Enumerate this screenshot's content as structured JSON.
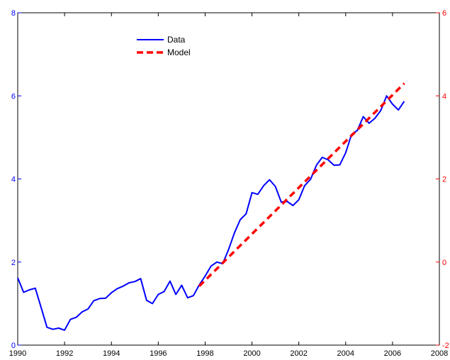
{
  "chart_data": {
    "type": "line",
    "x_axis": {
      "lim": [
        1990,
        2008
      ],
      "ticks": [
        1990,
        1992,
        1994,
        1996,
        1998,
        2000,
        2002,
        2004,
        2006,
        2008
      ],
      "tick_labels": [
        "1990",
        "1992",
        "1994",
        "1996",
        "1998",
        "2000",
        "2002",
        "2004",
        "2006",
        "2008"
      ],
      "color": "#000000"
    },
    "y_left": {
      "lim": [
        0,
        8
      ],
      "ticks": [
        0,
        2,
        4,
        6,
        8
      ],
      "tick_labels": [
        "0",
        "2",
        "4",
        "6",
        "8"
      ],
      "color": "#0000ff"
    },
    "y_right": {
      "lim": [
        -2,
        6
      ],
      "ticks": [
        -2,
        0,
        2,
        4,
        6
      ],
      "tick_labels": [
        "-2",
        "0",
        "2",
        "4",
        "6"
      ],
      "color": "#ff0000"
    },
    "grid": false,
    "legend": {
      "position": "top-left"
    },
    "series": [
      {
        "name": "Data",
        "axis": "left",
        "style": "solid",
        "color": "#0000ff",
        "x": [
          1990.0,
          1990.25,
          1990.5,
          1990.75,
          1991.0,
          1991.25,
          1991.5,
          1991.75,
          1992.0,
          1992.25,
          1992.5,
          1992.75,
          1993.0,
          1993.25,
          1993.5,
          1993.75,
          1994.0,
          1994.25,
          1994.5,
          1994.75,
          1995.0,
          1995.25,
          1995.5,
          1995.75,
          1996.0,
          1996.25,
          1996.5,
          1996.75,
          1997.0,
          1997.25,
          1997.5,
          1997.75,
          1998.0,
          1998.25,
          1998.5,
          1998.75,
          1999.0,
          1999.25,
          1999.5,
          1999.75,
          2000.0,
          2000.25,
          2000.5,
          2000.75,
          2001.0,
          2001.25,
          2001.5,
          2001.75,
          2002.0,
          2002.25,
          2002.5,
          2002.75,
          2003.0,
          2003.25,
          2003.5,
          2003.75,
          2004.0,
          2004.25,
          2004.5,
          2004.75,
          2005.0,
          2005.25,
          2005.5,
          2005.75,
          2006.0,
          2006.25,
          2006.5
        ],
        "y": [
          1.62,
          1.27,
          1.33,
          1.37,
          0.9,
          0.43,
          0.38,
          0.41,
          0.36,
          0.62,
          0.67,
          0.8,
          0.87,
          1.07,
          1.12,
          1.13,
          1.26,
          1.36,
          1.42,
          1.5,
          1.53,
          1.6,
          1.08,
          1.0,
          1.22,
          1.29,
          1.54,
          1.22,
          1.44,
          1.14,
          1.19,
          1.45,
          1.66,
          1.9,
          2.0,
          1.96,
          2.3,
          2.7,
          3.02,
          3.16,
          3.67,
          3.63,
          3.84,
          3.98,
          3.82,
          3.44,
          3.46,
          3.36,
          3.5,
          3.84,
          3.99,
          4.33,
          4.52,
          4.46,
          4.33,
          4.34,
          4.63,
          5.07,
          5.17,
          5.5,
          5.34,
          5.46,
          5.65,
          6.0,
          5.8,
          5.66,
          5.87
        ]
      },
      {
        "name": "Model",
        "axis": "right",
        "style": "dashed",
        "color": "#ff0000",
        "x": [
          1997.75,
          2006.5
        ],
        "y": [
          -0.58,
          4.3
        ]
      }
    ]
  }
}
